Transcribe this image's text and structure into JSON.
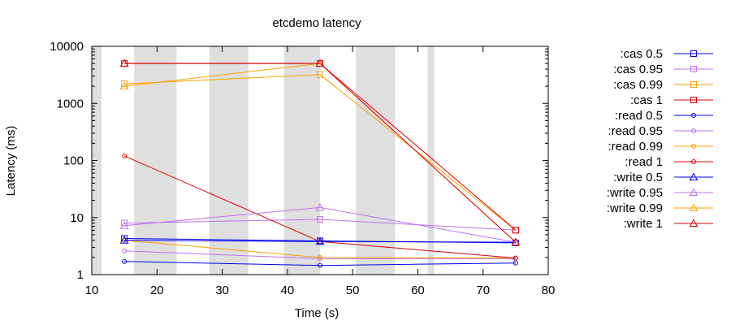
{
  "chart_data": {
    "type": "line",
    "title": "etcdemo latency",
    "xlabel": "Time (s)",
    "ylabel": "Latency (ms)",
    "xlim": [
      10,
      80
    ],
    "ylim": [
      1,
      10000
    ],
    "y_scale": "log",
    "x_ticks": [
      "10",
      "20",
      "30",
      "40",
      "50",
      "60",
      "70",
      "80"
    ],
    "y_ticks": [
      "1",
      "10",
      "100",
      "1000",
      "10000"
    ],
    "grid": false,
    "legend_position": "right",
    "nemesis_bands": [
      {
        "start": 10.0,
        "end": 11.5
      },
      {
        "start": 16.5,
        "end": 23.0
      },
      {
        "start": 28.0,
        "end": 34.0
      },
      {
        "start": 39.5,
        "end": 45.0
      },
      {
        "start": 50.5,
        "end": 56.5
      },
      {
        "start": 61.5,
        "end": 62.5
      }
    ],
    "series": [
      {
        "name": ":cas 0.5",
        "color": "#0000ee",
        "marker": "square",
        "x": [
          15,
          45,
          75
        ],
        "y": [
          4.3,
          3.9,
          3.6
        ]
      },
      {
        "name": ":cas 0.95",
        "color": "#c070f0",
        "marker": "square",
        "x": [
          15,
          45,
          75
        ],
        "y": [
          8.0,
          9.3,
          6.0
        ]
      },
      {
        "name": ":cas 0.99",
        "color": "#ffa000",
        "marker": "square",
        "x": [
          15,
          45,
          75
        ],
        "y": [
          2200,
          3200,
          6.0
        ]
      },
      {
        "name": ":cas 1",
        "color": "#dd0000",
        "marker": "square",
        "x": [
          15,
          45,
          75
        ],
        "y": [
          5000,
          5000,
          6.0
        ]
      },
      {
        "name": ":read 0.5",
        "color": "#0000ee",
        "marker": "circle",
        "x": [
          15,
          45,
          75
        ],
        "y": [
          1.7,
          1.45,
          1.6
        ]
      },
      {
        "name": ":read 0.95",
        "color": "#c070f0",
        "marker": "circle",
        "x": [
          15,
          45,
          75
        ],
        "y": [
          2.6,
          1.9,
          1.9
        ]
      },
      {
        "name": ":read 0.99",
        "color": "#ffa000",
        "marker": "circle",
        "x": [
          15,
          45,
          75
        ],
        "y": [
          4.0,
          2.0,
          1.95
        ]
      },
      {
        "name": ":read 1",
        "color": "#dd0000",
        "marker": "circle",
        "x": [
          15,
          45,
          75
        ],
        "y": [
          120,
          3.8,
          1.95
        ]
      },
      {
        "name": ":write 0.5",
        "color": "#0000ee",
        "marker": "triangle",
        "x": [
          15,
          45,
          75
        ],
        "y": [
          4.0,
          3.8,
          3.7
        ]
      },
      {
        "name": ":write 0.95",
        "color": "#c070f0",
        "marker": "triangle",
        "x": [
          15,
          45,
          75
        ],
        "y": [
          7.2,
          15.0,
          3.7
        ]
      },
      {
        "name": ":write 0.99",
        "color": "#ffa000",
        "marker": "triangle",
        "x": [
          15,
          45,
          75
        ],
        "y": [
          2000,
          5000,
          3.7
        ]
      },
      {
        "name": ":write 1",
        "color": "#dd0000",
        "marker": "triangle",
        "x": [
          15,
          45,
          75
        ],
        "y": [
          5000,
          5000,
          3.7
        ]
      }
    ]
  }
}
